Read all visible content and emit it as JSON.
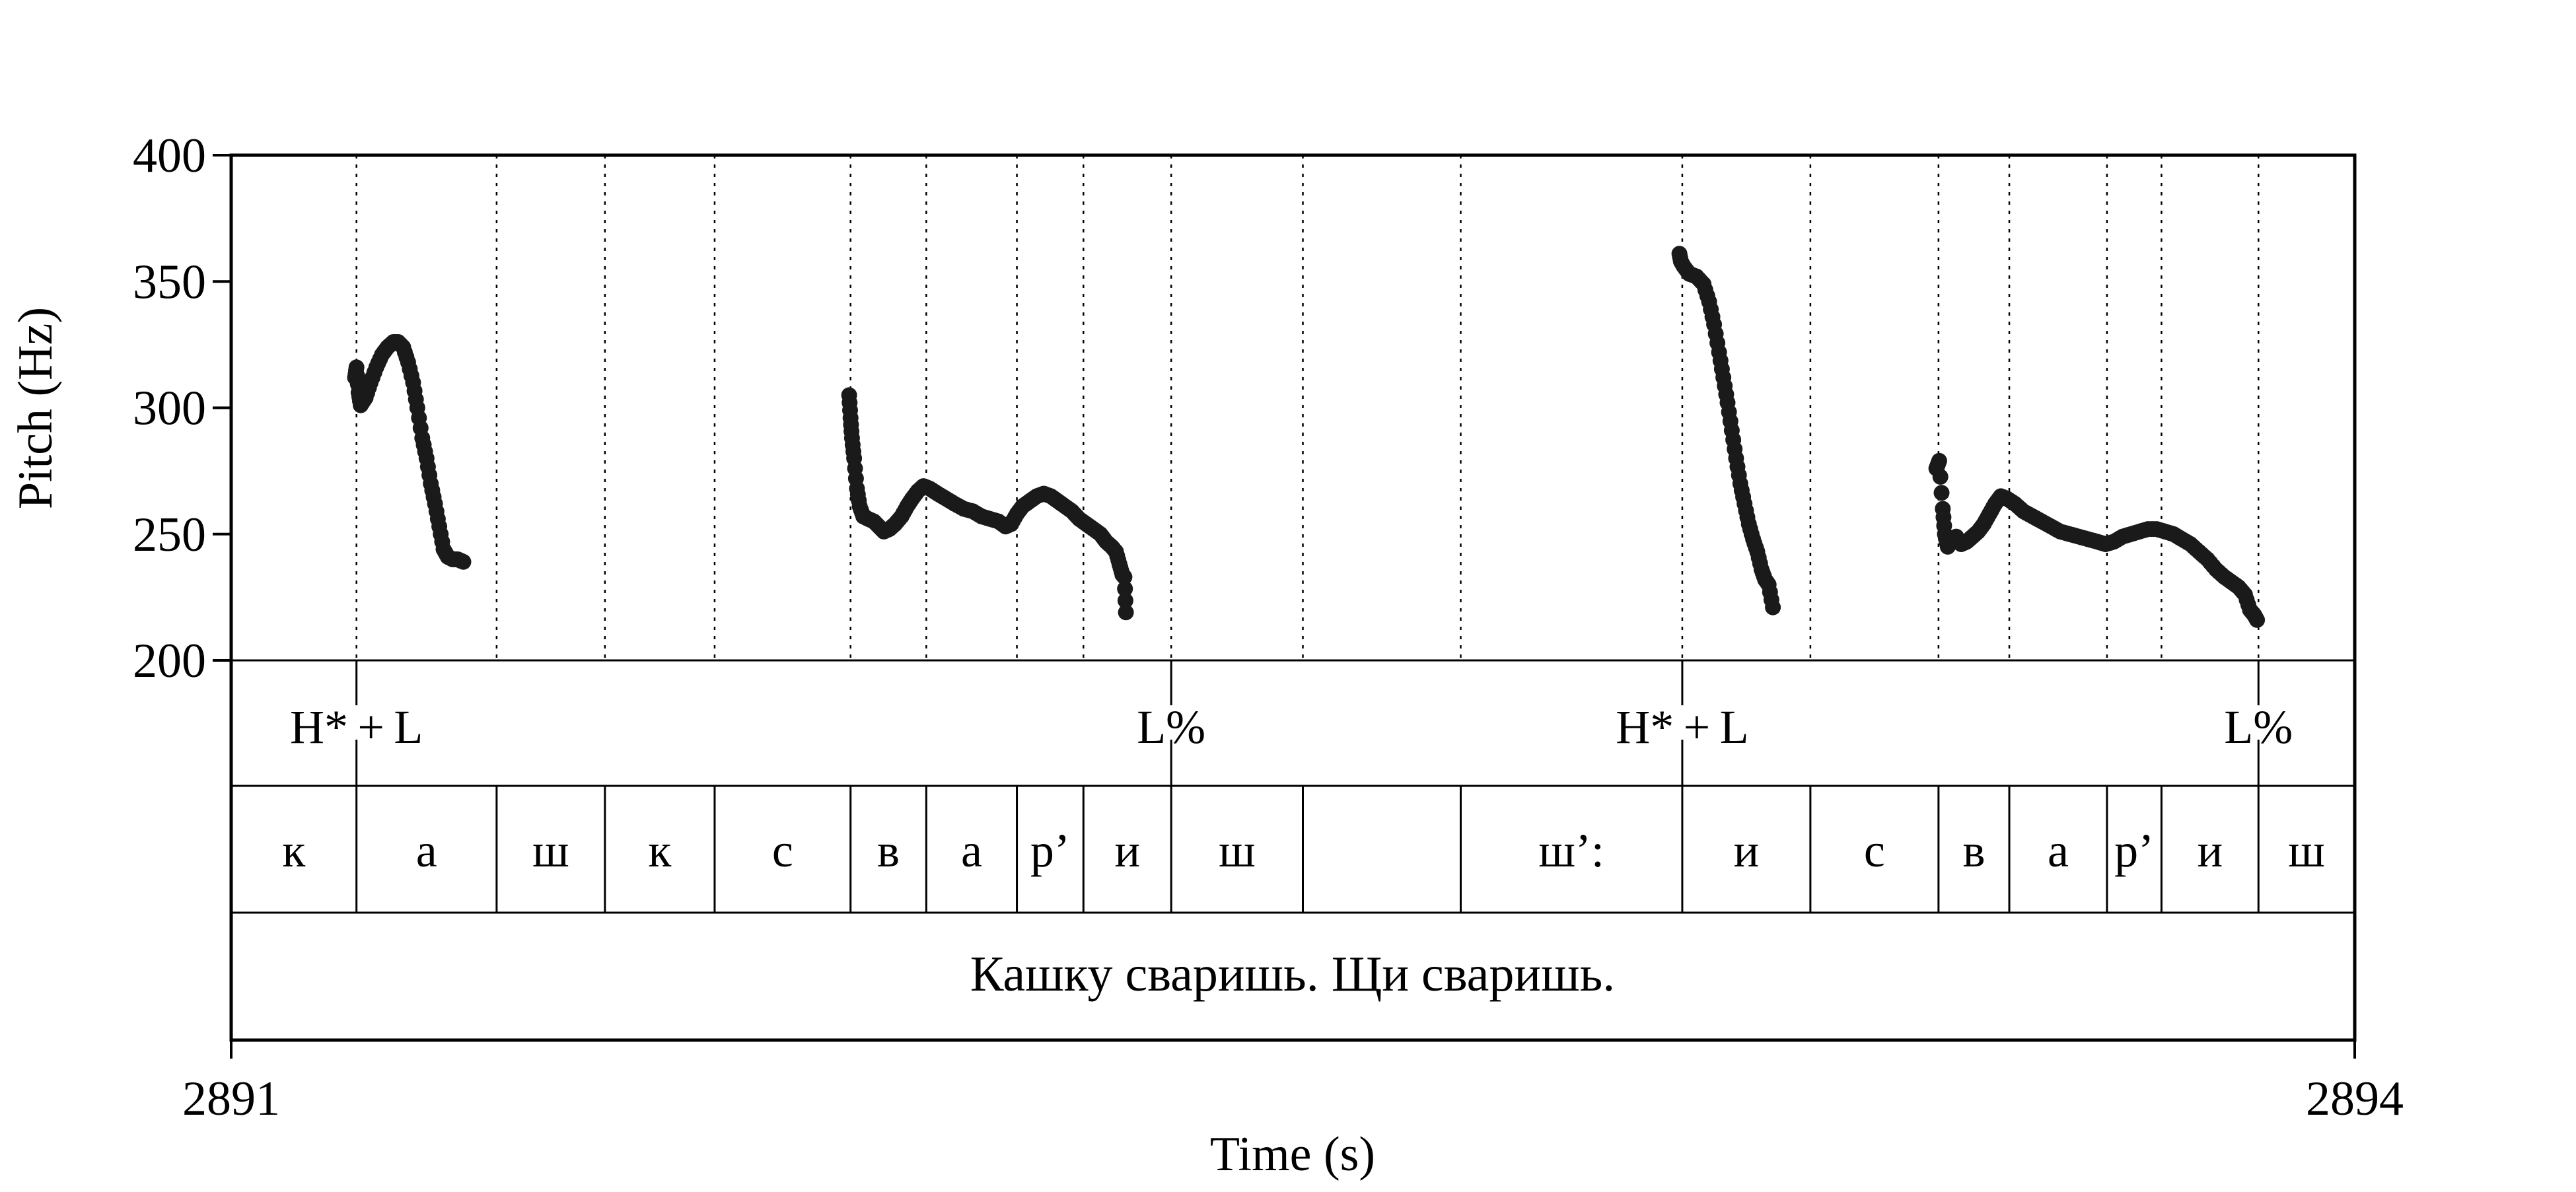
{
  "chart_data": {
    "type": "scatter",
    "xlabel": "Time (s)",
    "ylabel": "Pitch (Hz)",
    "xlim": [
      2891,
      2894
    ],
    "ylim": [
      200,
      400
    ],
    "x_tick_labels": [
      "2891",
      "2894"
    ],
    "y_tick_labels": [
      "200",
      "250",
      "300",
      "350",
      "400"
    ],
    "grid": false,
    "colors": {
      "points": "#1a1a1a",
      "frame": "#000000"
    },
    "boundaries": [
      2891.177,
      2891.375,
      2891.528,
      2891.683,
      2891.875,
      2891.982,
      2892.11,
      2892.204,
      2892.328,
      2892.514,
      2892.737,
      2893.05,
      2893.231,
      2893.412,
      2893.512,
      2893.65,
      2893.727,
      2893.864
    ],
    "tiers": {
      "tones": [
        {
          "t": 2891.177,
          "label": "H* + L"
        },
        {
          "t": 2892.328,
          "label": "L%"
        },
        {
          "t": 2893.05,
          "label": "H* + L"
        },
        {
          "t": 2893.864,
          "label": "L%"
        }
      ],
      "phones": [
        {
          "start": 2891.0,
          "end": 2891.177,
          "label": "к"
        },
        {
          "start": 2891.177,
          "end": 2891.375,
          "label": "а"
        },
        {
          "start": 2891.375,
          "end": 2891.528,
          "label": "ш"
        },
        {
          "start": 2891.528,
          "end": 2891.683,
          "label": "к"
        },
        {
          "start": 2891.683,
          "end": 2891.875,
          "label": "с"
        },
        {
          "start": 2891.875,
          "end": 2891.982,
          "label": "в"
        },
        {
          "start": 2891.982,
          "end": 2892.11,
          "label": "а"
        },
        {
          "start": 2892.11,
          "end": 2892.204,
          "label": "р’"
        },
        {
          "start": 2892.204,
          "end": 2892.328,
          "label": "и"
        },
        {
          "start": 2892.328,
          "end": 2892.514,
          "label": "ш"
        },
        {
          "start": 2892.514,
          "end": 2892.737,
          "label": ""
        },
        {
          "start": 2892.737,
          "end": 2893.05,
          "label": "ш’:"
        },
        {
          "start": 2893.05,
          "end": 2893.231,
          "label": "и"
        },
        {
          "start": 2893.231,
          "end": 2893.412,
          "label": "с"
        },
        {
          "start": 2893.412,
          "end": 2893.512,
          "label": "в"
        },
        {
          "start": 2893.512,
          "end": 2893.65,
          "label": "а"
        },
        {
          "start": 2893.65,
          "end": 2893.727,
          "label": "р’"
        },
        {
          "start": 2893.727,
          "end": 2893.864,
          "label": "и"
        },
        {
          "start": 2893.864,
          "end": 2894.0,
          "label": "ш"
        }
      ],
      "sentence": "Кашку сваришь. Щи сваришь."
    },
    "series": [
      {
        "points": [
          [
            2891.175,
            312
          ],
          [
            2891.177,
            316
          ],
          [
            2891.18,
            306
          ],
          [
            2891.183,
            301
          ],
          [
            2891.19,
            304
          ],
          [
            2891.197,
            310
          ],
          [
            2891.205,
            316
          ],
          [
            2891.213,
            321
          ],
          [
            2891.221,
            324
          ],
          [
            2891.229,
            326
          ],
          [
            2891.236,
            326
          ],
          [
            2891.243,
            324
          ],
          [
            2891.25,
            318
          ],
          [
            2891.257,
            310
          ],
          [
            2891.263,
            300
          ],
          [
            2891.27,
            288
          ],
          [
            2891.276,
            280
          ],
          [
            2891.282,
            270
          ],
          [
            2891.288,
            262
          ],
          [
            2891.294,
            253
          ],
          [
            2891.3,
            244
          ],
          [
            2891.306,
            241
          ],
          [
            2891.313,
            240
          ],
          [
            2891.32,
            240
          ],
          [
            2891.328,
            239
          ]
        ]
      },
      {
        "points": [
          [
            2891.873,
            305
          ],
          [
            2891.875,
            296
          ],
          [
            2891.877,
            288
          ],
          [
            2891.88,
            280
          ],
          [
            2891.884,
            268
          ],
          [
            2891.888,
            261
          ],
          [
            2891.893,
            257
          ],
          [
            2891.9,
            256
          ],
          [
            2891.908,
            255
          ],
          [
            2891.915,
            253
          ],
          [
            2891.922,
            251
          ],
          [
            2891.93,
            252
          ],
          [
            2891.938,
            254
          ],
          [
            2891.947,
            257
          ],
          [
            2891.955,
            261
          ],
          [
            2891.962,
            264
          ],
          [
            2891.97,
            267
          ],
          [
            2891.978,
            269
          ],
          [
            2891.987,
            268
          ],
          [
            2891.998,
            266
          ],
          [
            2892.01,
            264
          ],
          [
            2892.022,
            262
          ],
          [
            2892.035,
            260
          ],
          [
            2892.048,
            259
          ],
          [
            2892.06,
            257
          ],
          [
            2892.072,
            256
          ],
          [
            2892.084,
            255
          ],
          [
            2892.094,
            253
          ],
          [
            2892.102,
            254
          ],
          [
            2892.11,
            258
          ],
          [
            2892.118,
            261
          ],
          [
            2892.128,
            263
          ],
          [
            2892.138,
            265
          ],
          [
            2892.148,
            266
          ],
          [
            2892.158,
            265
          ],
          [
            2892.168,
            263
          ],
          [
            2892.178,
            261
          ],
          [
            2892.188,
            259
          ],
          [
            2892.198,
            256
          ],
          [
            2892.208,
            254
          ],
          [
            2892.218,
            252
          ],
          [
            2892.228,
            250
          ],
          [
            2892.236,
            247
          ],
          [
            2892.244,
            245
          ],
          [
            2892.25,
            243
          ],
          [
            2892.255,
            238
          ],
          [
            2892.259,
            234
          ],
          [
            2892.262,
            233
          ],
          [
            2892.264,
            219
          ]
        ]
      },
      {
        "points": [
          [
            2893.046,
            361
          ],
          [
            2893.048,
            358
          ],
          [
            2893.052,
            356
          ],
          [
            2893.06,
            353
          ],
          [
            2893.07,
            352
          ],
          [
            2893.08,
            349
          ],
          [
            2893.088,
            342
          ],
          [
            2893.095,
            333
          ],
          [
            2893.102,
            322
          ],
          [
            2893.108,
            312
          ],
          [
            2893.114,
            302
          ],
          [
            2893.12,
            291
          ],
          [
            2893.126,
            280
          ],
          [
            2893.132,
            270
          ],
          [
            2893.138,
            262
          ],
          [
            2893.144,
            254
          ],
          [
            2893.15,
            248
          ],
          [
            2893.156,
            243
          ],
          [
            2893.162,
            236
          ],
          [
            2893.167,
            232
          ],
          [
            2893.172,
            230
          ],
          [
            2893.178,
            221
          ]
        ]
      },
      {
        "points": [
          [
            2893.409,
            276
          ],
          [
            2893.413,
            279
          ],
          [
            2893.418,
            260
          ],
          [
            2893.421,
            250
          ],
          [
            2893.425,
            245
          ],
          [
            2893.43,
            247
          ],
          [
            2893.437,
            249
          ],
          [
            2893.444,
            246
          ],
          [
            2893.452,
            247
          ],
          [
            2893.46,
            249
          ],
          [
            2893.468,
            251
          ],
          [
            2893.476,
            254
          ],
          [
            2893.484,
            258
          ],
          [
            2893.492,
            262
          ],
          [
            2893.5,
            265
          ],
          [
            2893.509,
            264
          ],
          [
            2893.52,
            262
          ],
          [
            2893.532,
            259
          ],
          [
            2893.545,
            257
          ],
          [
            2893.558,
            255
          ],
          [
            2893.571,
            253
          ],
          [
            2893.584,
            251
          ],
          [
            2893.597,
            250
          ],
          [
            2893.61,
            249
          ],
          [
            2893.623,
            248
          ],
          [
            2893.636,
            247
          ],
          [
            2893.648,
            246
          ],
          [
            2893.66,
            247
          ],
          [
            2893.672,
            249
          ],
          [
            2893.684,
            250
          ],
          [
            2893.696,
            251
          ],
          [
            2893.708,
            252
          ],
          [
            2893.72,
            252
          ],
          [
            2893.732,
            251
          ],
          [
            2893.744,
            250
          ],
          [
            2893.756,
            248
          ],
          [
            2893.768,
            246
          ],
          [
            2893.78,
            243
          ],
          [
            2893.792,
            240
          ],
          [
            2893.804,
            236
          ],
          [
            2893.816,
            233
          ],
          [
            2893.826,
            231
          ],
          [
            2893.836,
            229
          ],
          [
            2893.845,
            226
          ],
          [
            2893.852,
            220
          ],
          [
            2893.858,
            218
          ],
          [
            2893.862,
            216
          ]
        ]
      }
    ]
  }
}
